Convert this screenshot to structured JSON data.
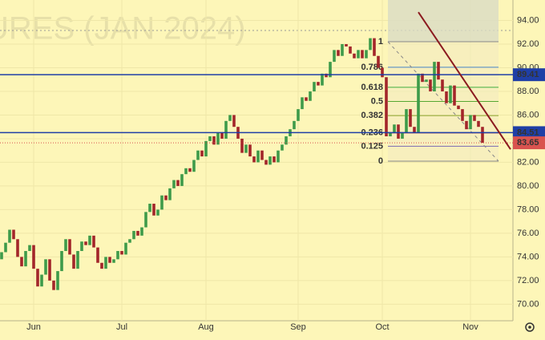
{
  "chart_data": {
    "type": "candlestick",
    "watermark": "URES (JAN 2024)",
    "open": [
      73.8,
      74.4,
      75.2,
      76.3,
      75.5,
      74.0,
      73.2,
      74.5,
      75.0,
      73.0,
      71.5,
      72.5,
      73.8,
      72.0,
      71.2,
      72.8,
      74.5,
      75.5,
      74.2,
      73.0,
      74.5,
      75.3,
      75.0,
      75.8,
      74.8,
      73.5,
      73.0,
      74.0,
      73.5,
      73.8,
      74.5,
      74.2,
      75.2,
      75.5,
      76.2,
      75.8,
      76.5,
      77.8,
      78.5,
      77.5,
      78.0,
      79.2,
      78.8,
      79.8,
      80.5,
      80.0,
      81.0,
      81.5,
      81.2,
      82.2,
      83.0,
      82.5,
      83.8,
      84.2,
      83.5,
      84.5,
      84.0,
      85.5,
      86.0,
      85.0,
      84.0,
      82.8,
      83.5,
      82.5,
      82.0,
      83.0,
      82.2,
      81.8,
      82.5,
      82.0,
      83.0,
      83.5,
      84.2,
      84.8,
      85.5,
      86.5,
      87.5,
      87.2,
      88.0,
      88.8,
      88.5,
      89.5,
      89.2,
      90.5,
      91.5,
      91.0,
      92.0,
      91.8,
      91.2,
      90.8,
      91.5,
      90.8,
      91.5,
      92.5,
      91.0,
      90.0,
      89.2,
      84.2,
      84.5,
      85.2,
      84.0,
      84.5,
      86.5,
      85.0,
      84.5,
      89.5,
      88.8,
      89.0,
      88.0,
      90.5,
      89.0,
      88.0,
      87.0,
      88.5,
      86.8,
      86.5,
      85.5,
      84.8,
      86.0,
      85.5,
      85.0
    ],
    "close": [
      74.4,
      75.2,
      76.3,
      75.5,
      74.0,
      73.2,
      74.5,
      75.0,
      73.0,
      71.5,
      72.5,
      73.8,
      72.0,
      71.2,
      72.8,
      74.5,
      75.5,
      74.2,
      73.0,
      74.5,
      75.3,
      75.0,
      75.8,
      74.8,
      73.5,
      73.0,
      74.0,
      73.5,
      73.8,
      74.5,
      74.2,
      75.2,
      75.5,
      76.2,
      75.8,
      76.5,
      77.8,
      78.5,
      77.5,
      78.0,
      79.2,
      78.8,
      79.8,
      80.5,
      80.0,
      81.0,
      81.5,
      81.2,
      82.2,
      83.0,
      82.5,
      83.8,
      84.2,
      83.5,
      84.5,
      84.0,
      85.5,
      86.0,
      85.0,
      84.0,
      82.8,
      83.5,
      82.5,
      82.0,
      83.0,
      82.2,
      81.8,
      82.5,
      82.0,
      83.0,
      83.5,
      84.2,
      84.8,
      85.5,
      86.5,
      87.5,
      87.2,
      88.0,
      88.8,
      88.5,
      89.5,
      89.2,
      90.5,
      91.5,
      91.0,
      92.0,
      91.8,
      91.2,
      90.8,
      91.5,
      90.8,
      91.5,
      92.5,
      91.0,
      90.0,
      89.2,
      84.2,
      84.5,
      85.2,
      84.0,
      84.5,
      86.5,
      85.0,
      84.5,
      89.5,
      88.8,
      89.0,
      88.0,
      90.5,
      89.0,
      88.0,
      87.0,
      88.5,
      86.8,
      86.5,
      85.5,
      84.8,
      86.0,
      85.5,
      85.0,
      83.65
    ],
    "up_color": "#3e9b4a",
    "down_color": "#a3262a",
    "ylim": [
      68.6,
      95.73
    ],
    "yticks": [
      {
        "value": 70,
        "label": "70.00"
      },
      {
        "value": 72,
        "label": "72.00"
      },
      {
        "value": 74,
        "label": "74.00"
      },
      {
        "value": 76,
        "label": "76.00"
      },
      {
        "value": 78,
        "label": "78.00"
      },
      {
        "value": 80,
        "label": "80.00"
      },
      {
        "value": 82,
        "label": "82.00"
      },
      {
        "value": 84,
        "label": "84.00"
      },
      {
        "value": 86,
        "label": "86.00"
      },
      {
        "value": 88,
        "label": "88.00"
      },
      {
        "value": 90,
        "label": "90.00"
      },
      {
        "value": 92,
        "label": "92.00"
      },
      {
        "value": 94,
        "label": "94.00"
      }
    ],
    "xlim": [
      -0.4,
      127.6
    ],
    "xticks": [
      {
        "value": 8,
        "label": "Jun"
      },
      {
        "value": 30,
        "label": "Jul"
      },
      {
        "value": 51,
        "label": "Aug"
      },
      {
        "value": 74,
        "label": "Sep"
      },
      {
        "value": 95,
        "label": "Oct"
      },
      {
        "value": 117,
        "label": "Nov"
      }
    ],
    "hlines": [
      {
        "value": 89.41,
        "color": "#1f3fa6"
      },
      {
        "value": 84.51,
        "color": "#1f3fa6"
      }
    ],
    "last_price": 83.65,
    "last_price_color": "#d9534f",
    "trendline": {
      "start": [
        104,
        94.7
      ],
      "end": [
        127,
        83.1
      ],
      "color": "#8b1a1f"
    },
    "fib": {
      "start": 96.4,
      "end": 124,
      "high": 92.2,
      "low": 82.1,
      "levels": [
        1,
        0.786,
        0.618,
        0.5,
        0.382,
        0.236,
        0.125,
        0
      ],
      "colors": [
        "#888888",
        "#4a86c8",
        "#3fae3f",
        "#57a832",
        "#8aa02a",
        "#c0504d",
        "#7b6bb3",
        "#888888"
      ]
    }
  }
}
